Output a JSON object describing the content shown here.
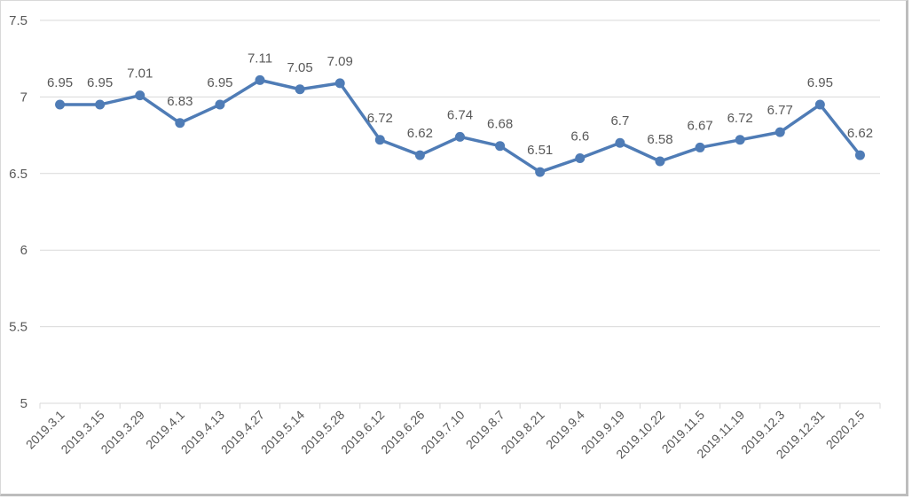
{
  "chart_data": {
    "type": "line",
    "title": "",
    "xlabel": "",
    "ylabel": "",
    "ylim": [
      5,
      7.5
    ],
    "yticks": [
      5,
      5.5,
      6,
      6.5,
      7,
      7.5
    ],
    "grid": true,
    "legend": "none",
    "color": "#4f7cb6",
    "categories": [
      "2019.3.1",
      "2019.3.15",
      "2019.3.29",
      "2019.4.1",
      "2019.4.13",
      "2019.4.27",
      "2019.5.14",
      "2019.5.28",
      "2019.6.12",
      "2019.6.26",
      "2019.7.10",
      "2019.8.7",
      "2019.8.21",
      "2019.9.4",
      "2019.9.19",
      "2019.10.22",
      "2019.11.5",
      "2019.11.19",
      "2019.12.3",
      "2019.12.31",
      "2020.2.5"
    ],
    "values": [
      6.95,
      6.95,
      7.01,
      6.83,
      6.95,
      7.11,
      7.05,
      7.09,
      6.72,
      6.62,
      6.74,
      6.68,
      6.51,
      6.6,
      6.7,
      6.58,
      6.67,
      6.72,
      6.77,
      6.95,
      6.62
    ]
  }
}
